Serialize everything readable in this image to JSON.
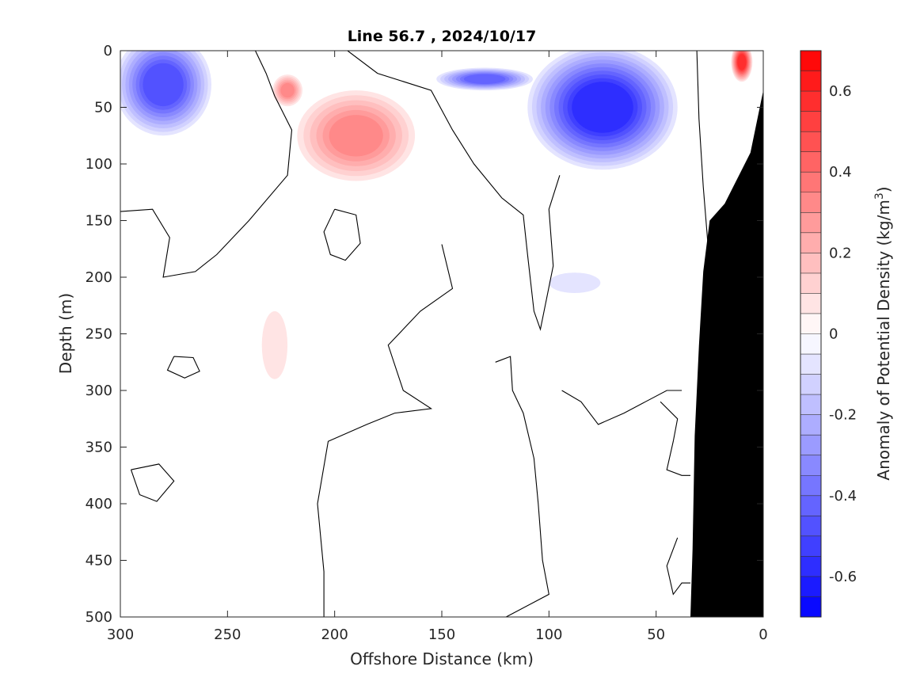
{
  "chart_data": {
    "type": "heatmap",
    "title": "Line 56.7 , 2024/10/17",
    "xlabel": "Offshore Distance (km)",
    "ylabel": "Depth (m)",
    "x_range": [
      300,
      0
    ],
    "y_range": [
      0,
      500
    ],
    "x_reversed": true,
    "y_reversed": true,
    "x_ticks": [
      300,
      250,
      200,
      150,
      100,
      50,
      0
    ],
    "y_ticks": [
      0,
      50,
      100,
      150,
      200,
      250,
      300,
      350,
      400,
      450,
      500
    ],
    "colorbar": {
      "label": "Anomaly of Potential Density (kg/m",
      "label_superscript": "3",
      "label_close": ")",
      "range": [
        -0.7,
        0.7
      ],
      "ticks": [
        -0.6,
        -0.4,
        -0.2,
        0,
        0.2,
        0.4,
        0.6
      ],
      "tick_labels": [
        "-0.6",
        "-0.4",
        "-0.2",
        "0",
        "0.2",
        "0.4",
        "0.6"
      ],
      "step": 0.05,
      "low_color": "#0000ff",
      "mid_color": "#ffffff",
      "high_color": "#ff0000"
    },
    "anomaly_features": [
      {
        "name": "offshore-negative",
        "sign": "negative",
        "center_km": 280,
        "center_depth_m": 30,
        "peak": -0.45,
        "extent_km": 45,
        "extent_m": 90
      },
      {
        "name": "nearshore-negative",
        "sign": "negative",
        "center_km": 75,
        "center_depth_m": 50,
        "peak": -0.58,
        "extent_km": 70,
        "extent_m": 110
      },
      {
        "name": "surface-negative-strip",
        "sign": "negative",
        "center_km": 130,
        "center_depth_m": 25,
        "peak": -0.4,
        "extent_km": 45,
        "extent_m": 20
      },
      {
        "name": "mid-positive",
        "sign": "positive",
        "center_km": 190,
        "center_depth_m": 75,
        "peak": 0.35,
        "extent_km": 55,
        "extent_m": 80
      },
      {
        "name": "positive-plume",
        "sign": "positive",
        "center_km": 222,
        "center_depth_m": 35,
        "peak": 0.32,
        "extent_km": 14,
        "extent_m": 28
      },
      {
        "name": "coastal-positive",
        "sign": "positive",
        "center_km": 10,
        "center_depth_m": 10,
        "peak": 0.55,
        "extent_km": 10,
        "extent_m": 35
      },
      {
        "name": "deep-negative-patch",
        "sign": "negative",
        "center_km": 88,
        "center_depth_m": 205,
        "peak": -0.07,
        "extent_km": 24,
        "extent_m": 18
      },
      {
        "name": "deep-positive-tongue",
        "sign": "positive",
        "center_km": 228,
        "center_depth_m": 260,
        "peak": 0.06,
        "extent_km": 12,
        "extent_m": 60
      }
    ],
    "bathymetry": {
      "color": "#000000",
      "points": [
        [
          0,
          35
        ],
        [
          6,
          90
        ],
        [
          18,
          135
        ],
        [
          25,
          150
        ],
        [
          28,
          195
        ],
        [
          30,
          260
        ],
        [
          32,
          340
        ],
        [
          33,
          440
        ],
        [
          34,
          500
        ],
        [
          0,
          500
        ]
      ]
    }
  }
}
